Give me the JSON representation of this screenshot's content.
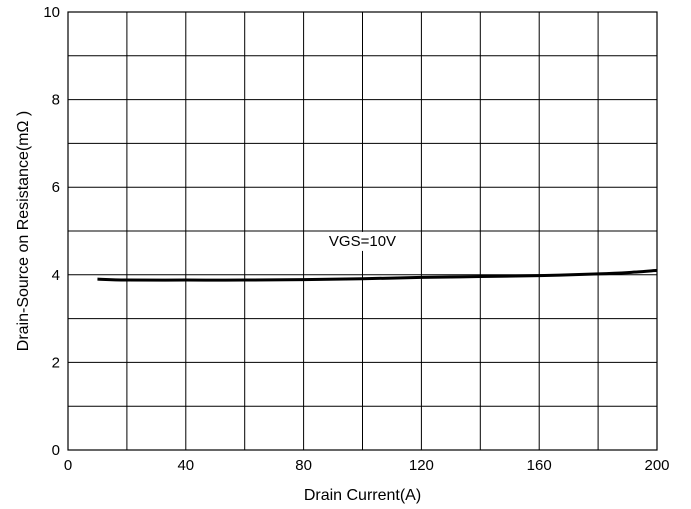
{
  "chart_data": {
    "type": "line",
    "title": "",
    "xlabel": "Drain Current(A)",
    "ylabel": "Drain-Source on Resistance(mΩ )",
    "xlim": [
      0,
      200
    ],
    "ylim": [
      0,
      10
    ],
    "x_ticks": [
      "0",
      "40",
      "80",
      "120",
      "160",
      "200"
    ],
    "y_ticks": [
      "0",
      "2",
      "4",
      "6",
      "8",
      "10"
    ],
    "grid": true,
    "series": [
      {
        "name": "VGS=10V",
        "x": [
          10,
          20,
          40,
          60,
          80,
          100,
          120,
          140,
          160,
          180,
          190,
          200
        ],
        "y": [
          3.9,
          3.88,
          3.88,
          3.88,
          3.89,
          3.91,
          3.94,
          3.96,
          3.98,
          4.02,
          4.05,
          4.1
        ]
      }
    ],
    "annotations": [
      {
        "text": "VGS=10V",
        "x": 100,
        "y": 4.75
      }
    ]
  }
}
